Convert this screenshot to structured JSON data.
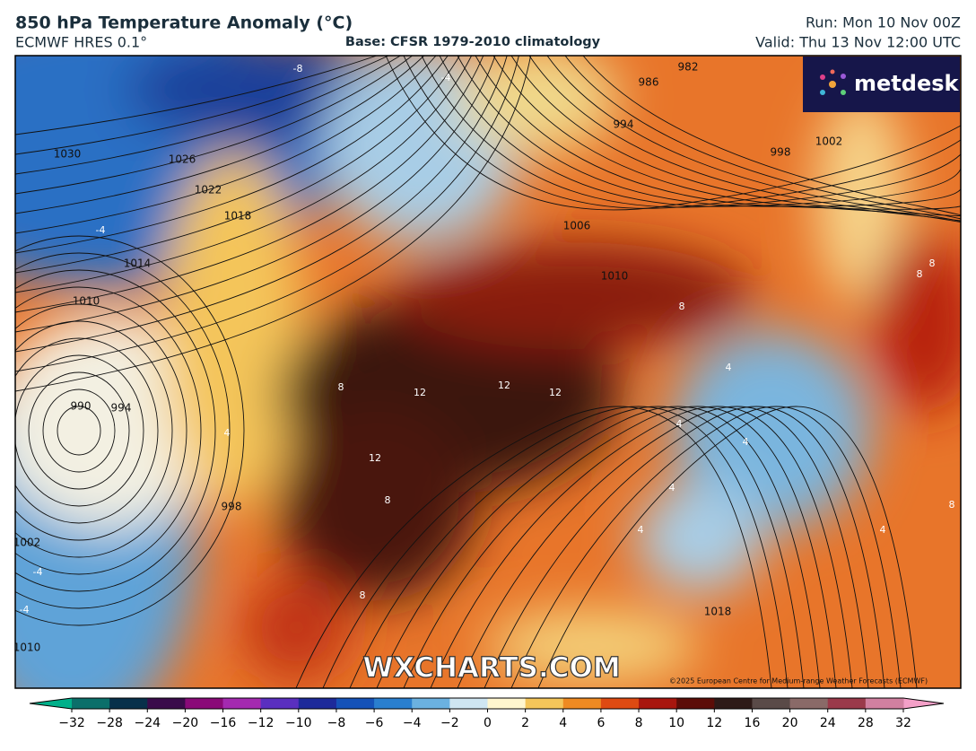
{
  "header": {
    "title": "850 hPa Temperature Anomaly (°C)",
    "model": "ECMWF HRES 0.1°",
    "base": "Base: CFSR 1979-2010 climatology",
    "run": "Run: Mon 10 Nov 00Z",
    "valid": "Valid: Thu 13 Nov 12:00 UTC"
  },
  "logo": "metdesk",
  "watermark": "WXCHARTS.COM",
  "copyright": "©2025 European Centre for Medium-range Weather Forecasts (ECMWF)",
  "map": {
    "pressure_labels": [
      1030,
      1026,
      1022,
      1018,
      1014,
      1010,
      990,
      994,
      998,
      1002,
      1010,
      1006,
      1010,
      998,
      1002,
      986,
      982,
      994,
      1018
    ],
    "anomaly_labels": [
      -8,
      -4,
      4,
      8,
      12,
      12,
      12,
      12,
      8,
      8,
      4,
      4,
      4,
      4,
      4,
      4,
      8,
      8,
      8,
      8,
      -4,
      -4,
      -4
    ]
  },
  "colorbar": {
    "ticks": [
      {
        "value": -32,
        "label": "−32"
      },
      {
        "value": -28,
        "label": "−28"
      },
      {
        "value": -24,
        "label": "−24"
      },
      {
        "value": -20,
        "label": "−20"
      },
      {
        "value": -16,
        "label": "−16"
      },
      {
        "value": -12,
        "label": "−12"
      },
      {
        "value": -10,
        "label": "−10"
      },
      {
        "value": -8,
        "label": "−8"
      },
      {
        "value": -6,
        "label": "−6"
      },
      {
        "value": -4,
        "label": "−4"
      },
      {
        "value": -2,
        "label": "−2"
      },
      0,
      2,
      4,
      6,
      8,
      10,
      12,
      16,
      20,
      24,
      28,
      32
    ],
    "colors": [
      "#0b6f6a",
      "#07304a",
      "#3a0b4a",
      "#8a0a78",
      "#a42ab0",
      "#5a2fbf",
      "#1d2a9a",
      "#1552b8",
      "#2a7fcf",
      "#6bb1e0",
      "#cfe6f2",
      "#fff6cf",
      "#f4c55a",
      "#ee8a22",
      "#de4a12",
      "#a8160e",
      "#5c0d08",
      "#2e1a18",
      "#5a4a48",
      "#8a6a68",
      "#9a3a4a",
      "#d080a0"
    ],
    "below_color": "#00b08a",
    "above_color": "#f4a0c8"
  }
}
